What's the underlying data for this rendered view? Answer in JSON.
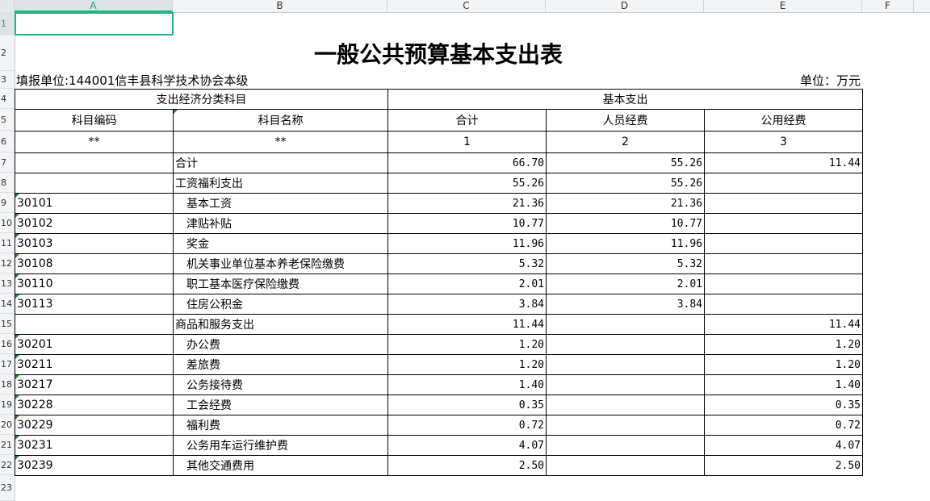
{
  "columns": [
    "A",
    "B",
    "C",
    "D",
    "E",
    "F"
  ],
  "rows": [
    "1",
    "2",
    "3",
    "4",
    "5",
    "6",
    "7",
    "8",
    "9",
    "10",
    "11",
    "12",
    "13",
    "14",
    "15",
    "16",
    "17",
    "18",
    "19",
    "20",
    "21",
    "22",
    "23"
  ],
  "title": "一般公共预算基本支出表",
  "unit_org": "填报单位:144001信丰县科学技术协会本级",
  "unit": "单位：万元",
  "header": {
    "group1": "支出经济分类科目",
    "group2": "基本支出",
    "code": "科目编码",
    "name": "科目名称",
    "total": "合计",
    "personnel": "人员经费",
    "public": "公用经费",
    "code_mark": "**",
    "name_mark": "**",
    "n1": "1",
    "n2": "2",
    "n3": "3"
  },
  "body": [
    {
      "code": "",
      "name": "合计",
      "total": "66.70",
      "personnel": "55.26",
      "public": "11.44"
    },
    {
      "code": "",
      "name": "工资福利支出",
      "total": "55.26",
      "personnel": "55.26",
      "public": ""
    },
    {
      "code": "30101",
      "name": "　基本工资",
      "total": "21.36",
      "personnel": "21.36",
      "public": ""
    },
    {
      "code": "30102",
      "name": "　津贴补贴",
      "total": "10.77",
      "personnel": "10.77",
      "public": ""
    },
    {
      "code": "30103",
      "name": "　奖金",
      "total": "11.96",
      "personnel": "11.96",
      "public": ""
    },
    {
      "code": "30108",
      "name": "　机关事业单位基本养老保险缴费",
      "total": "5.32",
      "personnel": "5.32",
      "public": ""
    },
    {
      "code": "30110",
      "name": "　职工基本医疗保险缴费",
      "total": "2.01",
      "personnel": "2.01",
      "public": ""
    },
    {
      "code": "30113",
      "name": "　住房公积金",
      "total": "3.84",
      "personnel": "3.84",
      "public": ""
    },
    {
      "code": "",
      "name": "商品和服务支出",
      "total": "11.44",
      "personnel": "",
      "public": "11.44"
    },
    {
      "code": "30201",
      "name": "　办公费",
      "total": "1.20",
      "personnel": "",
      "public": "1.20"
    },
    {
      "code": "30211",
      "name": "　差旅费",
      "total": "1.20",
      "personnel": "",
      "public": "1.20"
    },
    {
      "code": "30217",
      "name": "　公务接待费",
      "total": "1.40",
      "personnel": "",
      "public": "1.40"
    },
    {
      "code": "30228",
      "name": "　工会经费",
      "total": "0.35",
      "personnel": "",
      "public": "0.35"
    },
    {
      "code": "30229",
      "name": "　福利费",
      "total": "0.72",
      "personnel": "",
      "public": "0.72"
    },
    {
      "code": "30231",
      "name": "　公务用车运行维护费",
      "total": "4.07",
      "personnel": "",
      "public": "4.07"
    },
    {
      "code": "30239",
      "name": "　其他交通费用",
      "total": "2.50",
      "personnel": "",
      "public": "2.50"
    }
  ],
  "colors": {
    "selection": "#1fb57f"
  }
}
